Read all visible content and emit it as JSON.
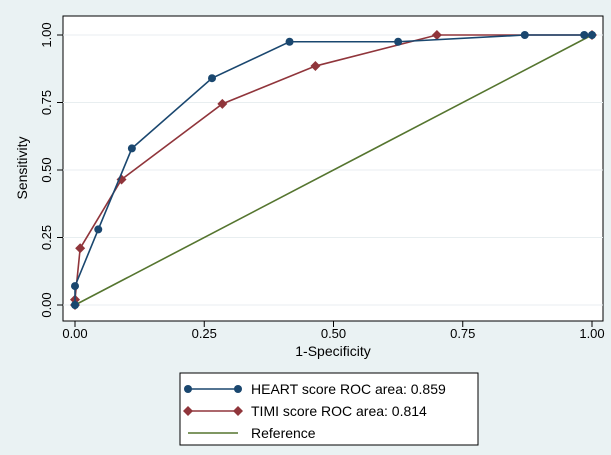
{
  "chart_data": {
    "type": "line",
    "xlabel": "1-Specificity",
    "ylabel": "Sensitivity",
    "xlim": [
      0,
      1
    ],
    "ylim": [
      0,
      1
    ],
    "x_ticks": [
      "0.00",
      "0.25",
      "0.50",
      "0.75",
      "1.00"
    ],
    "y_ticks": [
      "0.00",
      "0.25",
      "0.50",
      "0.75",
      "1.00"
    ],
    "grid": "horizontal",
    "legend_position": "bottom",
    "series": [
      {
        "name": "HEART score ROC area: 0.859",
        "color": "#1a476f",
        "marker": "circle",
        "points": [
          [
            0,
            0
          ],
          [
            0,
            0.07
          ],
          [
            0.045,
            0.28
          ],
          [
            0.11,
            0.58
          ],
          [
            0.265,
            0.84
          ],
          [
            0.415,
            0.975
          ],
          [
            0.625,
            0.975
          ],
          [
            0.87,
            1.0
          ],
          [
            0.985,
            1.0
          ],
          [
            1.0,
            1.0
          ]
        ]
      },
      {
        "name": "TIMI score ROC area: 0.814",
        "color": "#90353b",
        "marker": "diamond",
        "points": [
          [
            0,
            0
          ],
          [
            0,
            0.02
          ],
          [
            0.01,
            0.21
          ],
          [
            0.09,
            0.465
          ],
          [
            0.285,
            0.745
          ],
          [
            0.465,
            0.885
          ],
          [
            0.7,
            1.0
          ],
          [
            1.0,
            1.0
          ]
        ]
      },
      {
        "name": "Reference",
        "color": "#55752f",
        "marker": "none",
        "points": [
          [
            0,
            0
          ],
          [
            1,
            1
          ]
        ]
      }
    ]
  }
}
